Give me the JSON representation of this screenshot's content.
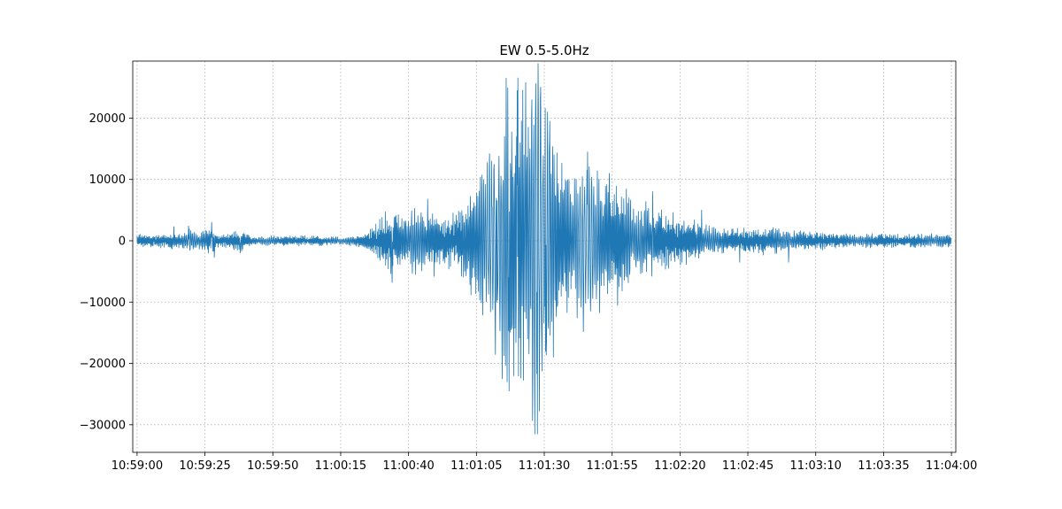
{
  "chart_data": {
    "type": "line",
    "title": "EW 0.5-5.0Hz",
    "xlabel": "",
    "ylabel": "",
    "x_range": [
      "10:59:00",
      "11:04:00"
    ],
    "xlim": [
      -1.6,
      301.6
    ],
    "ylim": [
      -34500,
      29300
    ],
    "x_ticks": [
      {
        "t": 0,
        "label": "10:59:00"
      },
      {
        "t": 25,
        "label": "10:59:25"
      },
      {
        "t": 50,
        "label": "10:59:50"
      },
      {
        "t": 75,
        "label": "11:00:15"
      },
      {
        "t": 100,
        "label": "11:00:40"
      },
      {
        "t": 125,
        "label": "11:01:05"
      },
      {
        "t": 150,
        "label": "11:01:30"
      },
      {
        "t": 175,
        "label": "11:01:55"
      },
      {
        "t": 200,
        "label": "11:02:20"
      },
      {
        "t": 225,
        "label": "11:02:45"
      },
      {
        "t": 250,
        "label": "11:03:10"
      },
      {
        "t": 275,
        "label": "11:03:35"
      },
      {
        "t": 300,
        "label": "11:04:00"
      }
    ],
    "y_ticks": [
      {
        "v": 20000,
        "label": "20000"
      },
      {
        "v": 10000,
        "label": "10000"
      },
      {
        "v": 0,
        "label": "0"
      },
      {
        "v": -10000,
        "label": "−10000"
      },
      {
        "v": -20000,
        "label": "−20000"
      },
      {
        "v": -30000,
        "label": "−30000"
      }
    ],
    "grid": true,
    "series": [
      {
        "color": "#1f77b4",
        "envelope": [
          {
            "t": 0,
            "amp": 1100
          },
          {
            "t": 18,
            "amp": 1400
          },
          {
            "t": 20,
            "amp": 2200
          },
          {
            "t": 24,
            "amp": 1500
          },
          {
            "t": 27,
            "amp": 2500
          },
          {
            "t": 30,
            "amp": 1100
          },
          {
            "t": 38,
            "amp": 1800
          },
          {
            "t": 42,
            "amp": 800
          },
          {
            "t": 60,
            "amp": 900
          },
          {
            "t": 75,
            "amp": 700
          },
          {
            "t": 83,
            "amp": 1000
          },
          {
            "t": 88,
            "amp": 3000
          },
          {
            "t": 92,
            "amp": 5500
          },
          {
            "t": 97,
            "amp": 5000
          },
          {
            "t": 103,
            "amp": 6000
          },
          {
            "t": 110,
            "amp": 4500
          },
          {
            "t": 118,
            "amp": 5500
          },
          {
            "t": 122,
            "amp": 9000
          },
          {
            "t": 128,
            "amp": 14000
          },
          {
            "t": 132,
            "amp": 19000
          },
          {
            "t": 136,
            "amp": 24000
          },
          {
            "t": 140,
            "amp": 25000
          },
          {
            "t": 145,
            "amp": 30000
          },
          {
            "t": 148,
            "amp": 31500
          },
          {
            "t": 152,
            "amp": 22000
          },
          {
            "t": 156,
            "amp": 15000
          },
          {
            "t": 160,
            "amp": 10000
          },
          {
            "t": 165,
            "amp": 15000
          },
          {
            "t": 170,
            "amp": 12000
          },
          {
            "t": 178,
            "amp": 9000
          },
          {
            "t": 185,
            "amp": 7000
          },
          {
            "t": 195,
            "amp": 5500
          },
          {
            "t": 205,
            "amp": 3500
          },
          {
            "t": 215,
            "amp": 2000
          },
          {
            "t": 230,
            "amp": 2500
          },
          {
            "t": 240,
            "amp": 1800
          },
          {
            "t": 260,
            "amp": 1300
          },
          {
            "t": 280,
            "amp": 1100
          },
          {
            "t": 292,
            "amp": 1200
          },
          {
            "t": 300,
            "amp": 1300
          }
        ],
        "extremes": [
          {
            "t": 13.5,
            "v": 2300
          },
          {
            "t": 19.0,
            "v": 2400
          },
          {
            "t": 27.5,
            "v": 3000
          },
          {
            "t": 28.5,
            "v": -2700
          },
          {
            "t": 38.0,
            "v": -2000
          },
          {
            "t": 94.0,
            "v": -6800
          },
          {
            "t": 107.0,
            "v": 6800
          },
          {
            "t": 109.5,
            "v": -5800
          },
          {
            "t": 127.0,
            "v": 7500
          },
          {
            "t": 132.5,
            "v": -10000
          },
          {
            "t": 136.0,
            "v": 26500
          },
          {
            "t": 137.0,
            "v": -24500
          },
          {
            "t": 134.5,
            "v": -22500
          },
          {
            "t": 140.0,
            "v": 24500
          },
          {
            "t": 143.2,
            "v": 25800
          },
          {
            "t": 146.5,
            "v": -31500
          },
          {
            "t": 147.5,
            "v": -31500
          },
          {
            "t": 150.5,
            "v": -18000
          },
          {
            "t": 152.0,
            "v": 19500
          },
          {
            "t": 166.0,
            "v": 14500
          },
          {
            "t": 174.0,
            "v": 11000
          },
          {
            "t": 177.0,
            "v": -10500
          },
          {
            "t": 190.0,
            "v": 8000
          },
          {
            "t": 208.0,
            "v": 5000
          },
          {
            "t": 222.0,
            "v": -3500
          },
          {
            "t": 240.0,
            "v": -3500
          }
        ]
      }
    ]
  }
}
